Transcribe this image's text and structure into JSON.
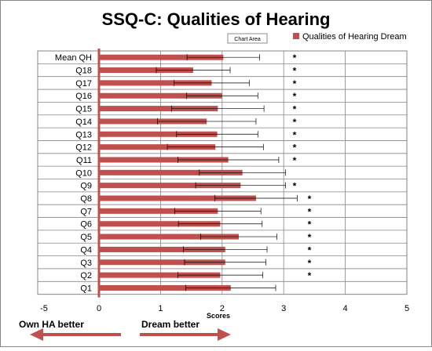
{
  "chart_data": {
    "type": "bar",
    "orientation": "horizontal",
    "title": "SSQ-C: Qualities of Hearing",
    "tooltip": "Chart Area",
    "xlabel": "Scores",
    "xlim": [
      -5,
      5
    ],
    "x_ticks": [
      "-5",
      "0",
      "1",
      "2",
      "3",
      "4",
      "5"
    ],
    "grid": true,
    "legend_position": "top-right",
    "categories": [
      "Mean QH",
      "Q18",
      "Q17",
      "Q16",
      "Q15",
      "Q14",
      "Q13",
      "Q12",
      "Q11",
      "Q10",
      "Q9",
      "Q8",
      "Q7",
      "Q6",
      "Q5",
      "Q4",
      "Q3",
      "Q2",
      "Q1"
    ],
    "series": [
      {
        "name": "Qualities of Hearing Dream",
        "color": "#c0504d",
        "values": [
          2.02,
          1.53,
          1.83,
          2.0,
          1.93,
          1.75,
          1.92,
          1.89,
          2.1,
          2.33,
          2.3,
          2.55,
          1.93,
          1.97,
          2.27,
          2.05,
          2.05,
          1.97,
          2.14
        ],
        "error": [
          0.59,
          0.6,
          0.61,
          0.58,
          0.75,
          0.8,
          0.66,
          0.78,
          0.82,
          0.7,
          0.73,
          0.67,
          0.7,
          0.68,
          0.62,
          0.68,
          0.66,
          0.69,
          0.73
        ]
      }
    ],
    "significance": [
      "*",
      "*",
      "*",
      "*",
      "*",
      "*",
      "*",
      "*",
      "*",
      "",
      "*",
      "*",
      "*",
      "*",
      "*",
      "*",
      "*",
      "*",
      ""
    ],
    "arrows": {
      "left_label": "Own HA better",
      "right_label": "Dream better",
      "color": "#c0504d"
    }
  }
}
